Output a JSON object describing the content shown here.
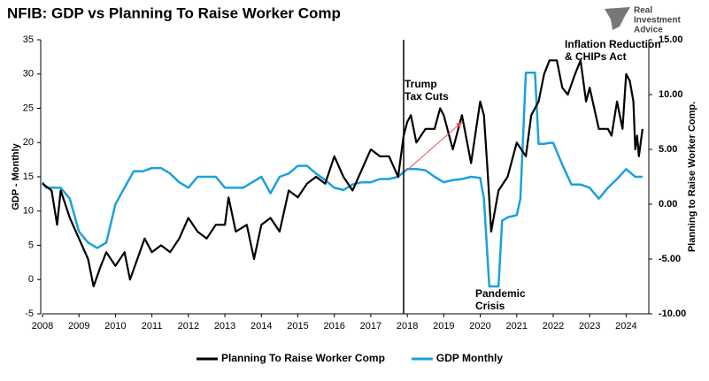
{
  "logo": [
    "Real",
    "Investment",
    "Advice"
  ],
  "chart_data": {
    "type": "line",
    "title": "NFIB: GDP vs Planning To Raise Worker Comp",
    "y_label": "GDP - Monthly",
    "y2_label": "Planning to Raise Worker Comp.",
    "xlim": [
      2008,
      2024.5
    ],
    "xticks": [
      2008,
      2009,
      2010,
      2011,
      2012,
      2013,
      2014,
      2015,
      2016,
      2017,
      2018,
      2019,
      2020,
      2021,
      2022,
      2023,
      2024
    ],
    "ylim": [
      -5,
      35
    ],
    "yticks": [
      -5,
      0,
      5,
      10,
      15,
      20,
      25,
      30,
      35
    ],
    "y2lim": [
      -10,
      15
    ],
    "y2ticks": [
      {
        "value": -10,
        "label": "-10.00"
      },
      {
        "value": -5,
        "label": "-5.00"
      },
      {
        "value": 0,
        "label": "0.00"
      },
      {
        "value": 5,
        "label": "5.00"
      },
      {
        "value": 10,
        "label": "10.00"
      },
      {
        "value": 15,
        "label": "15.00"
      }
    ],
    "event_line_x": 2017.9,
    "arrow": {
      "x": [
        2018.0,
        2019.5
      ],
      "y": [
        16,
        23
      ],
      "color": "#e84a4a"
    },
    "annotations": [
      [
        "Trump",
        "Tax Cuts"
      ],
      [
        "Inflation Reduction",
        "& CHIPs Act"
      ],
      [
        "Pandemic",
        "Crisis"
      ]
    ],
    "series": [
      {
        "name": "Planning To Raise Worker Comp",
        "color": "#000000",
        "x": [
          2008.0,
          2008.25,
          2008.4,
          2008.5,
          2008.75,
          2009.0,
          2009.25,
          2009.4,
          2009.6,
          2009.75,
          2010.0,
          2010.25,
          2010.4,
          2010.6,
          2010.8,
          2011.0,
          2011.25,
          2011.5,
          2011.75,
          2012.0,
          2012.25,
          2012.5,
          2012.75,
          2013.0,
          2013.1,
          2013.3,
          2013.6,
          2013.8,
          2014.0,
          2014.25,
          2014.5,
          2014.75,
          2015.0,
          2015.25,
          2015.5,
          2015.75,
          2016.0,
          2016.25,
          2016.5,
          2016.75,
          2017.0,
          2017.25,
          2017.5,
          2017.75,
          2017.9,
          2018.0,
          2018.1,
          2018.25,
          2018.5,
          2018.75,
          2018.9,
          2019.0,
          2019.25,
          2019.5,
          2019.75,
          2020.0,
          2020.1,
          2020.2,
          2020.3,
          2020.5,
          2020.75,
          2021.0,
          2021.25,
          2021.4,
          2021.6,
          2021.75,
          2021.9,
          2022.1,
          2022.25,
          2022.4,
          2022.6,
          2022.75,
          2022.9,
          2023.0,
          2023.25,
          2023.5,
          2023.6,
          2023.75,
          2023.9,
          2024.0,
          2024.1,
          2024.2,
          2024.25,
          2024.3,
          2024.35,
          2024.45
        ],
        "values": [
          14,
          13,
          8,
          13,
          9,
          6,
          3,
          -1,
          2,
          4,
          2,
          4,
          0,
          3,
          6,
          4,
          5,
          4,
          6,
          9,
          7,
          6,
          8,
          8,
          12,
          7,
          8,
          3,
          8,
          9,
          7,
          13,
          12,
          14,
          15,
          14,
          18,
          15,
          13,
          16,
          19,
          18,
          18,
          15,
          21,
          23,
          24,
          20,
          22,
          22,
          25,
          24,
          19,
          24,
          17,
          26,
          24,
          16,
          7,
          13,
          15,
          20,
          18,
          24,
          26,
          30,
          32,
          32,
          28,
          27,
          30,
          32,
          26,
          28,
          22,
          22,
          21,
          26,
          22,
          30,
          29,
          26,
          19,
          21,
          18,
          22
        ]
      },
      {
        "name": "GDP Monthly",
        "color": "#1ba1dc",
        "axis": "y2",
        "x": [
          2008.0,
          2008.1,
          2008.5,
          2008.75,
          2009.0,
          2009.25,
          2009.5,
          2009.75,
          2010.0,
          2010.25,
          2010.5,
          2010.75,
          2011.0,
          2011.25,
          2011.5,
          2011.75,
          2012.0,
          2012.25,
          2012.5,
          2012.75,
          2013.0,
          2013.25,
          2013.5,
          2013.75,
          2014.0,
          2014.25,
          2014.5,
          2014.75,
          2015.0,
          2015.25,
          2015.5,
          2015.75,
          2016.0,
          2016.25,
          2016.5,
          2016.75,
          2017.0,
          2017.25,
          2017.5,
          2017.75,
          2018.0,
          2018.25,
          2018.5,
          2018.75,
          2019.0,
          2019.25,
          2019.5,
          2019.75,
          2020.0,
          2020.1,
          2020.25,
          2020.5,
          2020.6,
          2020.75,
          2021.0,
          2021.1,
          2021.25,
          2021.5,
          2021.6,
          2021.75,
          2021.9,
          2022.0,
          2022.25,
          2022.5,
          2022.75,
          2023.0,
          2023.25,
          2023.5,
          2023.75,
          2024.0,
          2024.25,
          2024.45
        ],
        "values": [
          2,
          1.5,
          1.5,
          0.5,
          -2.5,
          -3.5,
          -4,
          -3.5,
          0,
          1.5,
          3,
          3,
          3.3,
          3.3,
          2.8,
          2,
          1.5,
          2.5,
          2.5,
          2.5,
          1.5,
          1.5,
          1.5,
          2,
          2.5,
          1,
          2.5,
          2.8,
          3.5,
          3.5,
          2.8,
          2.2,
          1.5,
          1.3,
          1.8,
          2,
          2,
          2.3,
          2.3,
          2.5,
          3.2,
          3.2,
          3.1,
          2.5,
          2,
          2.2,
          2.3,
          2.5,
          2.4,
          0.5,
          -7.5,
          -7.5,
          -1.5,
          -1.2,
          -1,
          0.5,
          12,
          12,
          5.5,
          5.5,
          5.6,
          5.6,
          3.6,
          1.8,
          1.8,
          1.5,
          0.5,
          1.5,
          2.3,
          3.2,
          2.5,
          2.5
        ]
      }
    ]
  }
}
